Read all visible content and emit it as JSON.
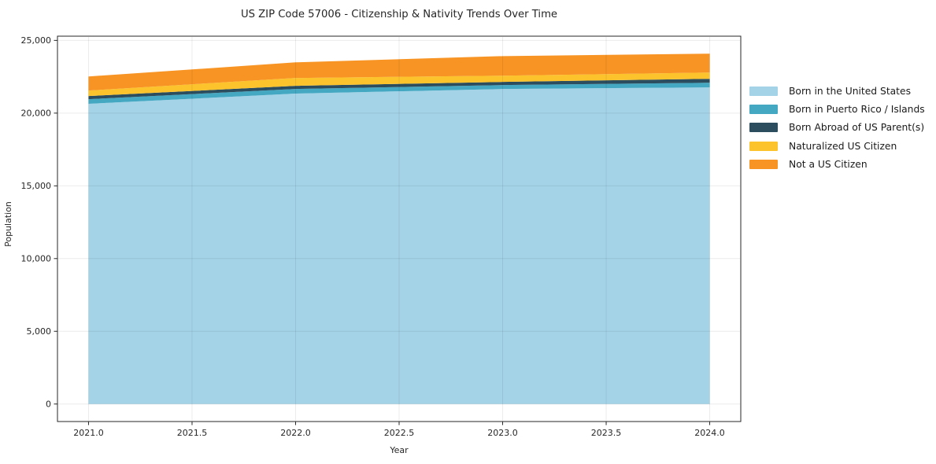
{
  "chart_data": {
    "type": "area",
    "stacked": true,
    "title": "US ZIP Code 57006 - Citizenship & Nativity Trends Over Time",
    "xlabel": "Year",
    "ylabel": "Population",
    "x": [
      2021,
      2022,
      2023,
      2024
    ],
    "series": [
      {
        "name": "Born in the United States",
        "color": "#A4D3E8",
        "values": [
          20640,
          21340,
          21660,
          21770
        ]
      },
      {
        "name": "Born in Puerto Rico / Islands",
        "color": "#44A8C2",
        "values": [
          320,
          320,
          270,
          320
        ]
      },
      {
        "name": "Born Abroad of US Parent(s)",
        "color": "#2B4D5E",
        "values": [
          215,
          215,
          215,
          270
        ]
      },
      {
        "name": "Naturalized US Citizen",
        "color": "#FCC32D",
        "values": [
          375,
          540,
          430,
          430
        ]
      },
      {
        "name": "Not a US Citizen",
        "color": "#F79423",
        "values": [
          970,
          1075,
          1345,
          1295
        ]
      }
    ],
    "x_ticks": [
      "2021.0",
      "2021.5",
      "2022.0",
      "2022.5",
      "2023.0",
      "2023.5",
      "2024.0"
    ],
    "y_ticks": [
      "0",
      "5,000",
      "10,000",
      "15,000",
      "20,000",
      "25,000"
    ],
    "xlim": [
      2020.85,
      2024.15
    ],
    "ylim": [
      -1204,
      25290
    ],
    "grid": true,
    "legend_position": "right"
  }
}
